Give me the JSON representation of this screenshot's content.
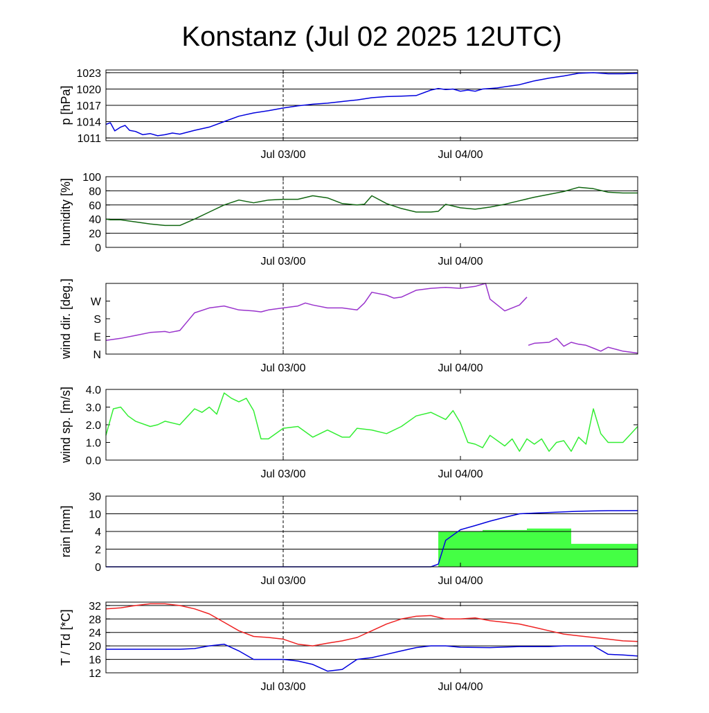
{
  "title": "Konstanz (Jul 02 2025 12UTC)",
  "chart_data": [
    {
      "type": "line",
      "ylabel": "p [hPa]",
      "ylim": [
        1010.5,
        1023.5
      ],
      "yticks": [
        1011,
        1014,
        1017,
        1020,
        1023
      ],
      "ytick_labels": [
        "1011",
        "1014",
        "1017",
        "1020",
        "1023"
      ],
      "xlim_hours": [
        0,
        36
      ],
      "xticks_hours": [
        12,
        24
      ],
      "xtick_labels": [
        "Jul 03/00",
        "Jul 04/00"
      ],
      "vline_hour": 12,
      "grid": true,
      "series": [
        {
          "color": "#0000dd",
          "x_hours": [
            0,
            0.3,
            0.6,
            1,
            1.3,
            1.6,
            2,
            2.5,
            3,
            3.5,
            4,
            4.5,
            5,
            6,
            7,
            8,
            9,
            10,
            11,
            12,
            13,
            14,
            15,
            16,
            17,
            18,
            19,
            20,
            21,
            22,
            22.5,
            23,
            23.5,
            24,
            24.5,
            25,
            25.5,
            26,
            26.5,
            27,
            27.5,
            28,
            29,
            30,
            31,
            32,
            33,
            34,
            35,
            36
          ],
          "values": [
            1013.5,
            1013.8,
            1012.3,
            1013.0,
            1013.3,
            1012.4,
            1012.2,
            1011.6,
            1011.8,
            1011.4,
            1011.6,
            1011.9,
            1011.7,
            1012.4,
            1013.0,
            1014.0,
            1015.0,
            1015.6,
            1016.0,
            1016.5,
            1016.9,
            1017.2,
            1017.4,
            1017.7,
            1018.0,
            1018.4,
            1018.6,
            1018.7,
            1018.8,
            1019.8,
            1020.1,
            1019.9,
            1020.0,
            1019.6,
            1019.8,
            1019.6,
            1020.0,
            1020.1,
            1020.2,
            1020.4,
            1020.6,
            1020.8,
            1021.5,
            1022.0,
            1022.4,
            1022.9,
            1023.0,
            1022.8,
            1022.8,
            1022.9
          ]
        }
      ]
    },
    {
      "type": "line",
      "ylabel": "humidity [%]",
      "ylim": [
        0,
        100
      ],
      "yticks": [
        0,
        20,
        40,
        60,
        80,
        100
      ],
      "ytick_labels": [
        "0",
        "20",
        "40",
        "60",
        "80",
        "100"
      ],
      "xlim_hours": [
        0,
        36
      ],
      "xticks_hours": [
        12,
        24
      ],
      "xtick_labels": [
        "Jul 03/00",
        "Jul 04/00"
      ],
      "vline_hour": 12,
      "grid": true,
      "series": [
        {
          "color": "#116611",
          "x_hours": [
            0,
            0.3,
            1,
            2,
            3,
            4,
            5,
            6,
            7,
            8,
            9,
            10,
            11,
            12,
            13,
            14,
            15,
            16,
            17,
            17.5,
            18,
            19,
            20,
            21,
            22,
            22.5,
            23,
            24,
            25,
            26,
            27,
            28,
            29,
            30,
            31,
            32,
            33,
            34,
            35,
            36
          ],
          "values": [
            40,
            39,
            39,
            36,
            33,
            31,
            31,
            40,
            50,
            60,
            67,
            63,
            67,
            68,
            68,
            73,
            70,
            62,
            60,
            61,
            73,
            62,
            55,
            50,
            50,
            51,
            61,
            56,
            54,
            57,
            61,
            66,
            71,
            75,
            79,
            85,
            83,
            78,
            77,
            77
          ]
        }
      ]
    },
    {
      "type": "line",
      "ylabel": "wind dir. [deg.]",
      "ylim": [
        0,
        360
      ],
      "yticks": [
        0,
        90,
        180,
        270
      ],
      "ytick_labels": [
        "N",
        "E",
        "S",
        "W"
      ],
      "xlim_hours": [
        0,
        36
      ],
      "xticks_hours": [
        12,
        24
      ],
      "xtick_labels": [
        "Jul 03/00",
        "Jul 04/00"
      ],
      "vline_hour": 12,
      "grid": false,
      "series": [
        {
          "color": "#9933cc",
          "x_hours": [
            0,
            1,
            2,
            3,
            4,
            4.3,
            5,
            5.5,
            6,
            7,
            8,
            9,
            10,
            10.5,
            11,
            12,
            13,
            13.5,
            14,
            15,
            16,
            17,
            17.5,
            18,
            19,
            19.5,
            20,
            21,
            22,
            23,
            24,
            25,
            25.7,
            26,
            27,
            28,
            28.5
          ],
          "values": [
            70,
            80,
            95,
            110,
            115,
            110,
            120,
            165,
            210,
            235,
            245,
            225,
            220,
            215,
            225,
            235,
            245,
            260,
            250,
            235,
            235,
            225,
            260,
            315,
            300,
            285,
            290,
            325,
            335,
            340,
            335,
            345,
            360,
            280,
            220,
            250,
            290
          ]
        },
        {
          "color": "#9933cc",
          "x_hours": [
            28.6,
            29,
            30,
            30.5,
            31,
            31.5,
            32,
            32.5,
            33,
            33.5,
            34,
            35,
            36
          ],
          "values": [
            45,
            55,
            60,
            80,
            40,
            60,
            50,
            45,
            30,
            15,
            35,
            15,
            5
          ]
        }
      ]
    },
    {
      "type": "line",
      "ylabel": "wind sp. [m/s]",
      "ylim": [
        0,
        4
      ],
      "yticks": [
        0,
        1,
        2,
        3,
        4
      ],
      "ytick_labels": [
        "0.0",
        "1.0",
        "2.0",
        "3.0",
        "4.0"
      ],
      "xlim_hours": [
        0,
        36
      ],
      "xticks_hours": [
        12,
        24
      ],
      "xtick_labels": [
        "Jul 03/00",
        "Jul 04/00"
      ],
      "vline_hour": 12,
      "grid": false,
      "series": [
        {
          "color": "#33ee33",
          "x_hours": [
            0,
            0.5,
            1,
            1.5,
            2,
            3,
            3.5,
            4,
            5,
            6,
            6.5,
            7,
            7.5,
            8,
            8.5,
            9,
            9.5,
            10,
            10.5,
            11,
            12,
            13,
            14,
            15,
            16,
            16.5,
            17,
            18,
            19,
            20,
            21,
            22,
            23,
            23.5,
            24,
            24.5,
            25,
            25.5,
            26,
            27,
            27.5,
            28,
            28.5,
            29,
            29.5,
            30,
            30.5,
            31,
            31.5,
            32,
            32.5,
            33,
            33.5,
            34,
            35,
            36
          ],
          "values": [
            1.4,
            2.9,
            3.0,
            2.5,
            2.2,
            1.9,
            2.0,
            2.2,
            2.0,
            2.9,
            2.7,
            3.0,
            2.6,
            3.8,
            3.5,
            3.3,
            3.5,
            2.8,
            1.2,
            1.2,
            1.8,
            1.9,
            1.3,
            1.7,
            1.3,
            1.3,
            1.8,
            1.7,
            1.5,
            1.9,
            2.5,
            2.7,
            2.3,
            2.8,
            2.1,
            1.0,
            0.9,
            0.7,
            1.4,
            0.8,
            1.2,
            0.5,
            1.2,
            0.9,
            1.2,
            0.5,
            1.0,
            1.1,
            0.5,
            1.3,
            0.9,
            2.9,
            1.5,
            1.0,
            1.0,
            1.9
          ]
        }
      ]
    },
    {
      "type": "bar+line",
      "ylabel": "rain [mm]",
      "yticks": [
        0,
        2,
        4,
        10,
        30
      ],
      "ytick_labels": [
        "0",
        "2",
        "4",
        "10",
        "30"
      ],
      "y_scale": "piecewise",
      "xlim_hours": [
        0,
        36
      ],
      "xticks_hours": [
        12,
        24
      ],
      "xtick_labels": [
        "Jul 03/00",
        "Jul 04/00"
      ],
      "vline_hour": 12,
      "grid": true,
      "bars": {
        "color": "#44ff44",
        "x_start_hours": [
          22.5,
          25.5,
          28.5,
          31.5
        ],
        "x_end_hours": [
          25.5,
          28.5,
          31.5,
          36
        ],
        "values": [
          4.0,
          4.5,
          5.0,
          2.6
        ]
      },
      "series": [
        {
          "color": "#0000dd",
          "x_hours": [
            0,
            22,
            22.5,
            23,
            24,
            25,
            26,
            27,
            28,
            29,
            30,
            31,
            32,
            33,
            34,
            36
          ],
          "values": [
            0,
            0,
            0.3,
            3.0,
            4.6,
            6.0,
            7.5,
            8.8,
            10.0,
            10.8,
            11.5,
            12.2,
            12.8,
            13.2,
            13.5,
            13.6
          ]
        }
      ]
    },
    {
      "type": "line",
      "ylabel": "T / Td [*C]",
      "ylim": [
        12,
        33
      ],
      "yticks": [
        12,
        16,
        20,
        24,
        28,
        32
      ],
      "ytick_labels": [
        "12",
        "16",
        "20",
        "24",
        "28",
        "32"
      ],
      "xlim_hours": [
        0,
        36
      ],
      "xticks_hours": [
        12,
        24
      ],
      "xtick_labels": [
        "Jul 03/00",
        "Jul 04/00"
      ],
      "vline_hour": 12,
      "grid": true,
      "series": [
        {
          "color": "#ee2222",
          "x_hours": [
            0,
            1,
            2,
            3,
            4,
            5,
            6,
            7,
            8,
            9,
            10,
            11,
            12,
            13,
            14,
            15,
            16,
            17,
            18,
            19,
            20,
            21,
            22,
            22.5,
            23,
            24,
            25,
            26,
            27,
            28,
            29,
            30,
            31,
            32,
            33,
            34,
            35,
            36
          ],
          "values": [
            31,
            31.3,
            32,
            32.5,
            32.5,
            32,
            31,
            29.5,
            27,
            24.5,
            22.8,
            22.5,
            22,
            20.5,
            20,
            20.8,
            21.5,
            22.5,
            24.5,
            26.5,
            28,
            28.8,
            29,
            28.5,
            28,
            28,
            28.3,
            27.5,
            27,
            26.5,
            25.5,
            24.5,
            23.5,
            23,
            22.5,
            22,
            21.5,
            21.3
          ]
        },
        {
          "color": "#0000dd",
          "x_hours": [
            0,
            2,
            4,
            5,
            6,
            7,
            8,
            9,
            10,
            11,
            12,
            13,
            14,
            15,
            16,
            17,
            18,
            19,
            20,
            21,
            22,
            23,
            24,
            26,
            28,
            30,
            31,
            32,
            33,
            34,
            35,
            36
          ],
          "values": [
            19,
            19,
            19,
            19,
            19.2,
            20,
            20.5,
            18.5,
            16,
            16,
            16,
            15.5,
            14.5,
            12.5,
            13,
            16,
            16.5,
            17.5,
            18.5,
            19.5,
            20,
            20,
            19.6,
            19.5,
            19.8,
            19.8,
            20,
            20,
            20,
            17.5,
            17.3,
            17
          ]
        }
      ]
    }
  ]
}
